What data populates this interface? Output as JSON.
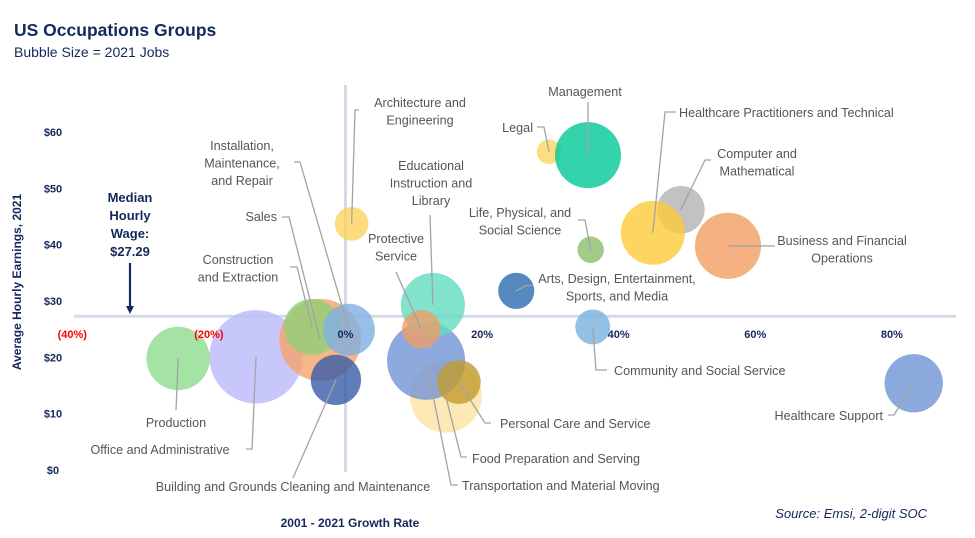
{
  "header": {
    "title": "US Occupations Groups",
    "subtitle": "Bubble Size = 2021 Jobs"
  },
  "footer": {
    "source": "Source: Emsi, 2-digit SOC"
  },
  "chart_data": {
    "type": "scatter",
    "subtype": "bubble",
    "title": "US Occupations Groups",
    "subtitle": "Bubble Size = 2021 Jobs",
    "xlabel": "2001 - 2021 Growth Rate",
    "ylabel": "Average Hourly Earnings, 2021",
    "xlim": [
      -45,
      90
    ],
    "ylim": [
      0,
      65
    ],
    "grid": false,
    "size_note": "size = relative 2021 jobs (Office and Administrative = 100)",
    "x_ticks": [
      {
        "value": -40,
        "label": "(40%)",
        "negative": true
      },
      {
        "value": -20,
        "label": "(20%)",
        "negative": true
      },
      {
        "value": 0,
        "label": "0%",
        "negative": false
      },
      {
        "value": 20,
        "label": "20%",
        "negative": false
      },
      {
        "value": 40,
        "label": "40%",
        "negative": false
      },
      {
        "value": 60,
        "label": "60%",
        "negative": false
      },
      {
        "value": 80,
        "label": "80%",
        "negative": false
      }
    ],
    "y_ticks": [
      {
        "value": 0,
        "label": "$0"
      },
      {
        "value": 10,
        "label": "$10"
      },
      {
        "value": 20,
        "label": "$20"
      },
      {
        "value": 30,
        "label": "$30"
      },
      {
        "value": 40,
        "label": "$40"
      },
      {
        "value": 50,
        "label": "$50"
      },
      {
        "value": 60,
        "label": "$60"
      }
    ],
    "reference_lines": {
      "median_wage": 27.29,
      "zero_growth": 0
    },
    "annotation": {
      "lines": [
        "Median",
        "Hourly",
        "Wage:",
        "$27.29"
      ]
    },
    "series": [
      {
        "name": "Office and Administrative",
        "label_lines": [
          "Office and Administrative"
        ],
        "x": -13.1,
        "y": 20.1,
        "size": 100,
        "color": "#b9b9fb"
      },
      {
        "name": "Production",
        "label_lines": [
          "Production"
        ],
        "x": -24.5,
        "y": 19.8,
        "size": 46,
        "color": "#8ddc8d"
      },
      {
        "name": "Sales",
        "label_lines": [
          "Sales"
        ],
        "x": -3.7,
        "y": 23.1,
        "size": 77,
        "color": "#f4a46c"
      },
      {
        "name": "Construction and Extraction",
        "label_lines": [
          "Construction",
          "and Extraction"
        ],
        "x": -4.9,
        "y": 25.4,
        "size": 36,
        "color": "#8fcf78"
      },
      {
        "name": "Installation, Maintenance, and Repair",
        "label_lines": [
          "Installation,",
          "Maintenance,",
          "and Repair"
        ],
        "x": 0.5,
        "y": 24.9,
        "size": 31,
        "color": "#7eafe2"
      },
      {
        "name": "Building and Grounds Cleaning and Maintenance",
        "label_lines": [
          "Building and Grounds Cleaning and Maintenance"
        ],
        "x": -1.4,
        "y": 16.0,
        "size": 29,
        "color": "#3a5ca8"
      },
      {
        "name": "Food Preparation and Serving",
        "label_lines": [
          "Food Preparation and Serving"
        ],
        "x": 14.7,
        "y": 13.0,
        "size": 59,
        "color": "#fde4a4"
      },
      {
        "name": "Transportation and Material Moving",
        "label_lines": [
          "Transportation and Material Moving"
        ],
        "x": 11.8,
        "y": 19.4,
        "size": 70,
        "color": "#7094d6"
      },
      {
        "name": "Personal Care and Service",
        "label_lines": [
          "Personal Care and Service"
        ],
        "x": 16.6,
        "y": 15.6,
        "size": 22,
        "color": "#c39a30"
      },
      {
        "name": "Educational Instruction and Library",
        "label_lines": [
          "Educational",
          "Instruction and",
          "Library"
        ],
        "x": 12.8,
        "y": 29.3,
        "size": 47,
        "color": "#62dcbf"
      },
      {
        "name": "Protective Service",
        "label_lines": [
          "Protective",
          "Service"
        ],
        "x": 11.1,
        "y": 25.0,
        "size": 17,
        "color": "#ee9e66"
      },
      {
        "name": "Architecture and Engineering",
        "label_lines": [
          "Architecture and",
          "Engineering"
        ],
        "x": 0.9,
        "y": 43.7,
        "size": 13,
        "color": "#fdd35e"
      },
      {
        "name": "Legal",
        "label_lines": [
          "Legal"
        ],
        "x": 29.8,
        "y": 56.5,
        "size": 7,
        "color": "#fcd462"
      },
      {
        "name": "Management",
        "label_lines": [
          "Management"
        ],
        "x": 35.5,
        "y": 55.9,
        "size": 50,
        "color": "#00c896"
      },
      {
        "name": "Life, Physical, and Social Science",
        "label_lines": [
          "Life, Physical, and",
          "Social Science"
        ],
        "x": 35.9,
        "y": 39.1,
        "size": 8,
        "color": "#8bbd6a"
      },
      {
        "name": "Computer and Mathematical",
        "label_lines": [
          "Computer and",
          "Mathematical"
        ],
        "x": 49.1,
        "y": 46.2,
        "size": 26,
        "color": "#b3b3b3"
      },
      {
        "name": "Healthcare Practitioners and Technical",
        "label_lines": [
          "Healthcare Practitioners and Technical"
        ],
        "x": 45.0,
        "y": 42.1,
        "size": 47,
        "color": "#fdca38"
      },
      {
        "name": "Business and Financial Operations",
        "label_lines": [
          "Business and Financial",
          "Operations"
        ],
        "x": 56.0,
        "y": 39.8,
        "size": 50,
        "color": "#f29e62"
      },
      {
        "name": "Arts, Design, Entertainment, Sports, and Media",
        "label_lines": [
          "Arts, Design, Entertainment,",
          "Sports, and Media"
        ],
        "x": 25.0,
        "y": 31.8,
        "size": 15,
        "color": "#2a6bb0"
      },
      {
        "name": "Community and Social Service",
        "label_lines": [
          "Community and Social Service"
        ],
        "x": 36.2,
        "y": 25.4,
        "size": 14,
        "color": "#7ab0e0"
      },
      {
        "name": "Healthcare Support",
        "label_lines": [
          "Healthcare Support"
        ],
        "x": 83.2,
        "y": 15.4,
        "size": 39,
        "color": "#6e93d4"
      }
    ]
  }
}
